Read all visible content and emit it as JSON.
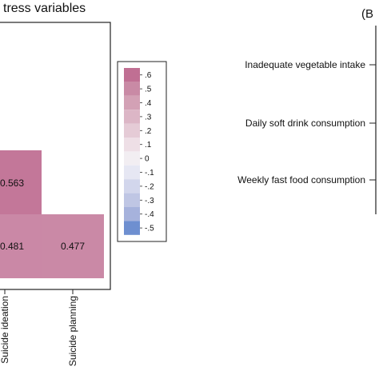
{
  "chart_data": [
    {
      "type": "heatmap",
      "title": "tress variables",
      "columns": [
        "Suicide ideation",
        "Suicide planning"
      ],
      "cells": [
        {
          "row": 0,
          "col": 0,
          "value": 0.563,
          "label": "0.563"
        },
        {
          "row": 1,
          "col": 0,
          "value": 0.481,
          "label": "0.481"
        },
        {
          "row": 1,
          "col": 1,
          "value": 0.477,
          "label": "0.477"
        }
      ],
      "legend": {
        "labels": [
          ".6",
          ".5",
          ".4",
          ".3",
          ".2",
          ".1",
          "0",
          "-.1",
          "-.2",
          "-.3",
          "-.4",
          "-.5"
        ],
        "colors": [
          "#c06f93",
          "#c98aa5",
          "#d3a1b5",
          "#dcb6c6",
          "#e5cbd6",
          "#eedfe6",
          "#f2eef2",
          "#e6e7f3",
          "#d2d6ec",
          "#bfc6e4",
          "#a6b2dc",
          "#6e8fd0"
        ]
      },
      "cell_color_scale": {
        "low": "#f2eef2",
        "high": "#c06f93",
        "min": 0,
        "max": 0.6
      }
    },
    {
      "type": "forest",
      "panel_label": "(B",
      "rows": [
        "Inadequate vegetable intake",
        "Daily soft drink consumption",
        "Weekly fast food consumption"
      ]
    }
  ]
}
